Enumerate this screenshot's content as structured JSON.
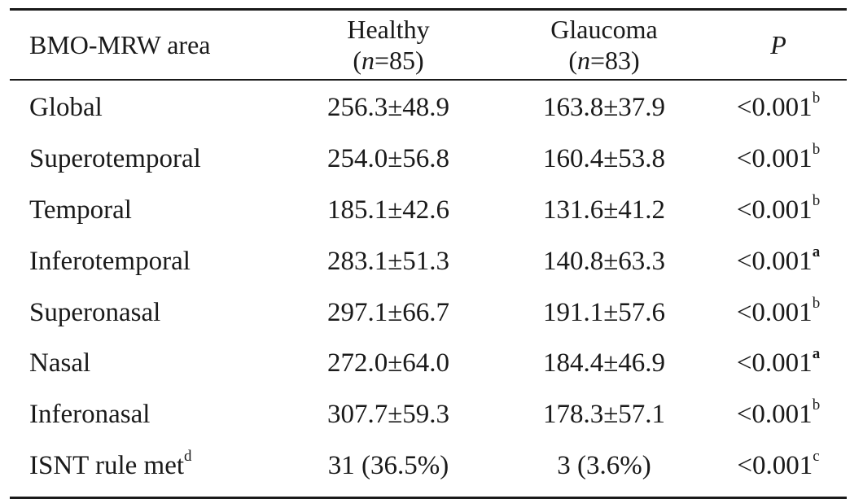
{
  "header": {
    "area": "BMO-MRW area",
    "healthy": "Healthy",
    "healthy_n_label": "n",
    "healthy_n_value": "=85)",
    "glaucoma": "Glaucoma",
    "glaucoma_n_label": "n",
    "glaucoma_n_value": "=83)",
    "open_paren": "(",
    "p": "P"
  },
  "rows": [
    {
      "area": "Global",
      "area_sup": "",
      "healthy": "256.3±48.9",
      "glaucoma": "163.8±37.9",
      "p": "<0.001",
      "p_sup": "b"
    },
    {
      "area": "Superotemporal",
      "area_sup": "",
      "healthy": "254.0±56.8",
      "glaucoma": "160.4±53.8",
      "p": "<0.001",
      "p_sup": "b"
    },
    {
      "area": "Temporal",
      "area_sup": "",
      "healthy": "185.1±42.6",
      "glaucoma": "131.6±41.2",
      "p": "<0.001",
      "p_sup": "b"
    },
    {
      "area": "Inferotemporal",
      "area_sup": "",
      "healthy": "283.1±51.3",
      "glaucoma": "140.8±63.3",
      "p": "<0.001",
      "p_sup": "a"
    },
    {
      "area": "Superonasal",
      "area_sup": "",
      "healthy": "297.1±66.7",
      "glaucoma": "191.1±57.6",
      "p": "<0.001",
      "p_sup": "b"
    },
    {
      "area": "Nasal",
      "area_sup": "",
      "healthy": "272.0±64.0",
      "glaucoma": "184.4±46.9",
      "p": "<0.001",
      "p_sup": "a"
    },
    {
      "area": "Inferonasal",
      "area_sup": "",
      "healthy": "307.7±59.3",
      "glaucoma": "178.3±57.1",
      "p": "<0.001",
      "p_sup": "b"
    },
    {
      "area": "ISNT rule met",
      "area_sup": "d",
      "healthy": "31 (36.5%)",
      "glaucoma": "3 (3.6%)",
      "p": "<0.001",
      "p_sup": "c"
    }
  ]
}
